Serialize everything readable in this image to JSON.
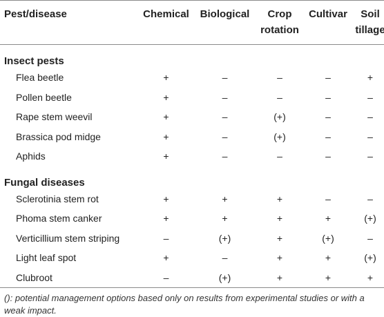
{
  "header": {
    "pest": "Pest/disease",
    "chemical": "Chemical",
    "biological": "Biological",
    "crop_rotation": "Crop rotation",
    "cultivar": "Cultivar",
    "soil_tillage": "Soil tillage"
  },
  "groups": [
    {
      "title": "Insect pests",
      "rows": [
        {
          "name": "Flea beetle",
          "chemical": "+",
          "biological": "–",
          "crop_rotation": "–",
          "cultivar": "–",
          "soil_tillage": "+"
        },
        {
          "name": "Pollen beetle",
          "chemical": "+",
          "biological": "–",
          "crop_rotation": "–",
          "cultivar": "–",
          "soil_tillage": "–"
        },
        {
          "name": "Rape stem weevil",
          "chemical": "+",
          "biological": "–",
          "crop_rotation": "(+)",
          "cultivar": "–",
          "soil_tillage": "–"
        },
        {
          "name": "Brassica pod midge",
          "chemical": "+",
          "biological": "–",
          "crop_rotation": "(+)",
          "cultivar": "–",
          "soil_tillage": "–"
        },
        {
          "name": "Aphids",
          "chemical": "+",
          "biological": "–",
          "crop_rotation": "–",
          "cultivar": "–",
          "soil_tillage": "–"
        }
      ]
    },
    {
      "title": "Fungal diseases",
      "rows": [
        {
          "name": "Sclerotinia stem rot",
          "chemical": "+",
          "biological": "+",
          "crop_rotation": "+",
          "cultivar": "–",
          "soil_tillage": "–"
        },
        {
          "name": "Phoma stem canker",
          "chemical": "+",
          "biological": "+",
          "crop_rotation": "+",
          "cultivar": "+",
          "soil_tillage": "(+)"
        },
        {
          "name": "Verticillium stem striping",
          "chemical": "–",
          "biological": "(+)",
          "crop_rotation": "+",
          "cultivar": "(+)",
          "soil_tillage": "–"
        },
        {
          "name": "Light leaf spot",
          "chemical": "+",
          "biological": "–",
          "crop_rotation": "+",
          "cultivar": "+",
          "soil_tillage": "(+)"
        },
        {
          "name": "Clubroot",
          "chemical": "–",
          "biological": "(+)",
          "crop_rotation": "+",
          "cultivar": "+",
          "soil_tillage": "+"
        }
      ]
    }
  ],
  "footnote": "(): potential management options based only on results from experimental studies or with a weak impact."
}
